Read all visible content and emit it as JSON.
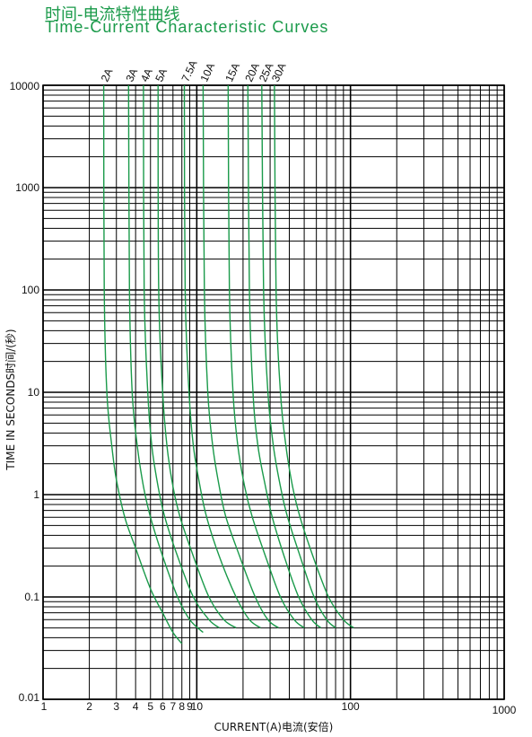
{
  "chart_data": {
    "type": "line",
    "title": "时间-电流特性曲线",
    "subtitle": "Time-Current Characteristic Curves",
    "xlabel": "CURRENT(A)电流(安倍)",
    "ylabel": "TIME IN SECONDS时间/(秒)",
    "x_scale": "log",
    "y_scale": "log",
    "xlim": [
      1,
      1000
    ],
    "ylim": [
      0.01,
      10000
    ],
    "grid": true,
    "curve_color": "#1a9a4a",
    "x_ticks": [
      "1",
      "2",
      "3",
      "4",
      "5",
      "6",
      "7",
      "8",
      "9",
      "10",
      "100",
      "1000"
    ],
    "y_ticks": [
      "10000",
      "1000",
      "100",
      "10",
      "1",
      "0.1",
      "0.01"
    ],
    "series": [
      {
        "name": "2A",
        "x": [
          2.48,
          2.5,
          2.6,
          2.8,
          3.0,
          3.4,
          4.0,
          5.0,
          6.0,
          7.0,
          8.0
        ],
        "y": [
          10000,
          100,
          10,
          3,
          1.4,
          0.6,
          0.3,
          0.12,
          0.07,
          0.045,
          0.035
        ]
      },
      {
        "name": "3A",
        "x": [
          3.6,
          3.65,
          3.8,
          4.1,
          4.5,
          5.0,
          6.0,
          7.5,
          9.0,
          11.0
        ],
        "y": [
          10000,
          100,
          10,
          3,
          1.2,
          0.6,
          0.25,
          0.1,
          0.06,
          0.045
        ]
      },
      {
        "name": "4A",
        "x": [
          4.5,
          4.55,
          4.8,
          5.1,
          5.6,
          6.2,
          7.5,
          9.5,
          12.0,
          14.0
        ],
        "y": [
          10000,
          100,
          10,
          3,
          1.2,
          0.6,
          0.25,
          0.1,
          0.06,
          0.05
        ]
      },
      {
        "name": "5A",
        "x": [
          5.6,
          5.65,
          6.0,
          6.4,
          7.0,
          7.8,
          9.5,
          12.0,
          15.0,
          18.0
        ],
        "y": [
          10000,
          100,
          10,
          3,
          1.2,
          0.6,
          0.25,
          0.1,
          0.06,
          0.05
        ]
      },
      {
        "name": "7.5A",
        "x": [
          8.3,
          8.4,
          8.9,
          9.5,
          10.5,
          11.6,
          14.0,
          18.0,
          22.0,
          26.0
        ],
        "y": [
          10000,
          100,
          10,
          3,
          1.2,
          0.6,
          0.25,
          0.1,
          0.06,
          0.05
        ]
      },
      {
        "name": "10A",
        "x": [
          11.0,
          11.2,
          11.8,
          12.7,
          14.0,
          15.5,
          19.0,
          24.0,
          29.0,
          34.0
        ],
        "y": [
          10000,
          100,
          10,
          3,
          1.2,
          0.6,
          0.25,
          0.1,
          0.06,
          0.05
        ]
      },
      {
        "name": "15A",
        "x": [
          16.0,
          16.3,
          17.2,
          18.5,
          20.5,
          23.0,
          28.0,
          35.0,
          43.0,
          50.0
        ],
        "y": [
          10000,
          100,
          10,
          3,
          1.2,
          0.6,
          0.25,
          0.1,
          0.06,
          0.05
        ]
      },
      {
        "name": "20A",
        "x": [
          21.5,
          22.0,
          23.2,
          25.0,
          28.0,
          31.0,
          37.0,
          46.0,
          56.0,
          64.0
        ],
        "y": [
          10000,
          100,
          10,
          3,
          1.2,
          0.6,
          0.25,
          0.1,
          0.06,
          0.05
        ]
      },
      {
        "name": "25A",
        "x": [
          26.5,
          27.2,
          29.0,
          31.5,
          35.0,
          39.0,
          47.0,
          58.0,
          70.0,
          80.0
        ],
        "y": [
          10000,
          100,
          10,
          3,
          1.2,
          0.6,
          0.25,
          0.1,
          0.06,
          0.05
        ]
      },
      {
        "name": "30A",
        "x": [
          32.0,
          32.8,
          35.0,
          38.0,
          42.0,
          47.0,
          57.0,
          72.0,
          90.0,
          105.0
        ],
        "y": [
          10000,
          100,
          10,
          3,
          1.2,
          0.6,
          0.25,
          0.1,
          0.06,
          0.05
        ]
      }
    ]
  }
}
